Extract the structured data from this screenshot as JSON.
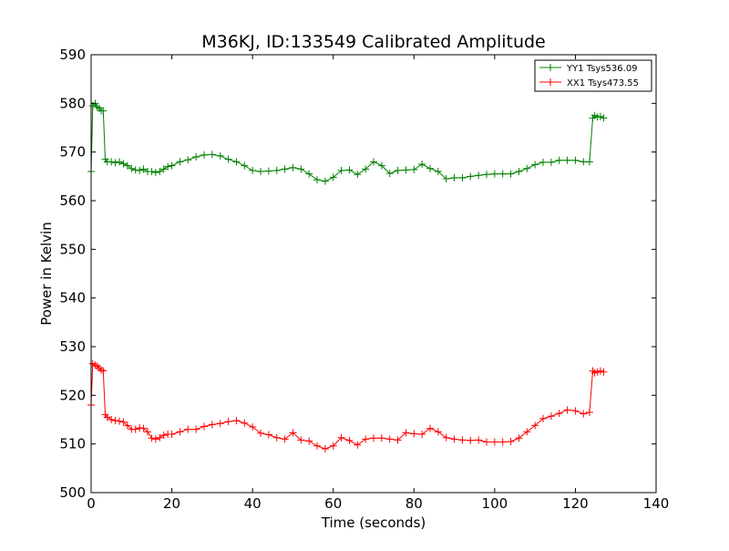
{
  "chart_data": {
    "type": "line",
    "title": "M36KJ, ID:133549 Calibrated Amplitude",
    "xlabel": "Time (seconds)",
    "ylabel": "Power in Kelvin",
    "xlim": [
      0,
      140
    ],
    "ylim": [
      500,
      590
    ],
    "xticks": [
      0,
      20,
      40,
      60,
      80,
      100,
      120,
      140
    ],
    "yticks": [
      500,
      510,
      520,
      530,
      540,
      550,
      560,
      570,
      580,
      590
    ],
    "grid": false,
    "legend_position": "top-right",
    "marker": "+",
    "series": [
      {
        "name": "YY1 Tsys536.09",
        "color": "#008000",
        "x": [
          0,
          0.4,
          1,
          1.5,
          2,
          2.5,
          3,
          3.5,
          4,
          5,
          6,
          7,
          8,
          9,
          10,
          11,
          12,
          13,
          14,
          15,
          16,
          17,
          18,
          19,
          20,
          22,
          24,
          26,
          28,
          30,
          32,
          34,
          36,
          38,
          40,
          42,
          44,
          46,
          48,
          50,
          52,
          54,
          56,
          58,
          60,
          62,
          64,
          66,
          68,
          70,
          72,
          74,
          76,
          78,
          80,
          82,
          84,
          86,
          88,
          90,
          92,
          94,
          96,
          98,
          100,
          102,
          104,
          106,
          108,
          110,
          112,
          114,
          116,
          118,
          120,
          122,
          123.5,
          124.3,
          124.8,
          125.5,
          126.2,
          127
        ],
        "values": [
          566,
          579.5,
          580,
          579.3,
          579,
          578.5,
          578.5,
          568.5,
          568,
          568,
          567.8,
          568,
          567.6,
          567.2,
          566.6,
          566.3,
          566.2,
          566.5,
          566,
          566,
          565.8,
          566,
          566.5,
          567,
          567.2,
          568,
          568.4,
          569,
          569.4,
          569.5,
          569.2,
          568.5,
          568,
          567.2,
          566.2,
          566,
          566.1,
          566.2,
          566.5,
          566.8,
          566.5,
          565.5,
          564.3,
          564,
          564.8,
          566.2,
          566.3,
          565.4,
          566.5,
          568,
          567.2,
          565.6,
          566.2,
          566.3,
          566.4,
          567.5,
          566.6,
          566,
          564.5,
          564.7,
          564.7,
          565,
          565.2,
          565.4,
          565.5,
          565.5,
          565.5,
          566,
          566.6,
          567.4,
          567.9,
          567.9,
          568.3,
          568.3,
          568.3,
          568,
          568,
          577,
          577.5,
          577.2,
          577.3,
          577
        ]
      },
      {
        "name": "XX1 Tsys473.55",
        "color": "#ff0000",
        "x": [
          0,
          0.4,
          1,
          1.5,
          2,
          2.5,
          3,
          3.5,
          4,
          5,
          6,
          7,
          8,
          9,
          10,
          11,
          12,
          13,
          14,
          15,
          16,
          17,
          18,
          19,
          20,
          22,
          24,
          26,
          28,
          30,
          32,
          34,
          36,
          38,
          40,
          42,
          44,
          46,
          48,
          50,
          52,
          54,
          56,
          58,
          60,
          62,
          64,
          66,
          68,
          70,
          72,
          74,
          76,
          78,
          80,
          82,
          84,
          86,
          88,
          90,
          92,
          94,
          96,
          98,
          100,
          102,
          104,
          106,
          108,
          110,
          112,
          114,
          116,
          118,
          120,
          122,
          123.5,
          124.3,
          124.8,
          125.5,
          126.2,
          127
        ],
        "values": [
          518,
          526.5,
          526.2,
          526,
          525.6,
          525.2,
          525,
          516,
          515.5,
          515,
          514.8,
          514.7,
          514.5,
          513.8,
          513,
          513,
          513.3,
          513.2,
          512.5,
          511.2,
          511,
          511.3,
          511.8,
          512,
          512,
          512.5,
          513,
          513,
          513.6,
          514,
          514.2,
          514.6,
          514.8,
          514.3,
          513.5,
          512.2,
          511.9,
          511.3,
          511,
          512.3,
          510.8,
          510.6,
          509.6,
          509,
          509.6,
          511.3,
          510.7,
          509.8,
          511,
          511.2,
          511.2,
          511,
          510.8,
          512.3,
          512.1,
          512,
          513.2,
          512.5,
          511.3,
          511,
          510.8,
          510.7,
          510.8,
          510.4,
          510.4,
          510.4,
          510.5,
          511.2,
          512.5,
          513.8,
          515.2,
          515.7,
          516.3,
          517,
          516.8,
          516.2,
          516.5,
          525,
          524.6,
          524.8,
          525,
          524.8
        ]
      }
    ]
  }
}
